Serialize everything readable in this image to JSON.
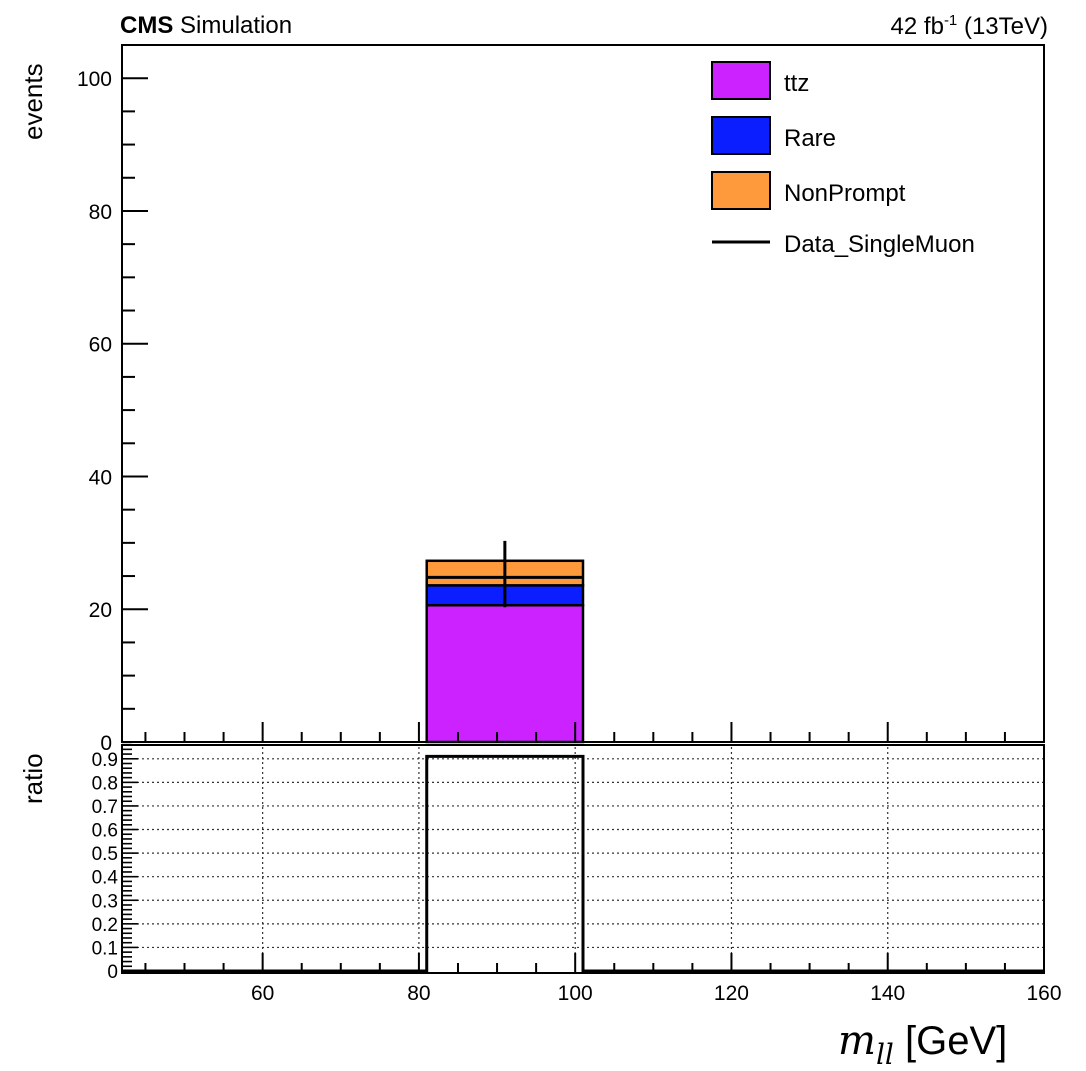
{
  "header": {
    "experiment": "CMS",
    "status": "Simulation",
    "lumi_value": "42 fb",
    "lumi_exponent": "-1",
    "energy": "(13TeV)"
  },
  "axes": {
    "upper_ylabel": "events",
    "lower_ylabel": "ratio",
    "xlabel_var": "m",
    "xlabel_sub": "ll",
    "xlabel_unit": "[GeV]"
  },
  "chart_data": [
    {
      "type": "bar",
      "panel": "main",
      "stacked": true,
      "xlim": [
        42,
        160
      ],
      "ylim": [
        0,
        105
      ],
      "ylabel": "events",
      "yticks": [
        {
          "value": 0,
          "label": "0"
        },
        {
          "value": 20,
          "label": "20"
        },
        {
          "value": 40,
          "label": "40"
        },
        {
          "value": 60,
          "label": "60"
        },
        {
          "value": 80,
          "label": "80"
        },
        {
          "value": 100,
          "label": "100"
        }
      ],
      "bins": [
        [
          81,
          101
        ]
      ],
      "series": [
        {
          "name": "ttz",
          "color": "#cc22ff",
          "values": [
            20.6
          ]
        },
        {
          "name": "Rare",
          "color": "#0a1eff",
          "values": [
            3.0
          ]
        },
        {
          "name": "NonPrompt",
          "color": "#ff9a3c",
          "values": [
            3.7
          ]
        }
      ],
      "data_points": {
        "name": "Data_SingleMuon",
        "color": "#000000",
        "x": [
          91
        ],
        "y": [
          24.8
        ],
        "err_low": [
          4.5
        ],
        "err_high": [
          5.5
        ]
      },
      "legend": "top-right"
    },
    {
      "type": "line",
      "panel": "ratio",
      "xlim": [
        42,
        160
      ],
      "ylim": [
        0,
        0.95
      ],
      "ylabel": "ratio",
      "yticks": [
        {
          "value": 0,
          "label": "0"
        },
        {
          "value": 0.1,
          "label": "0.1"
        },
        {
          "value": 0.2,
          "label": "0.2"
        },
        {
          "value": 0.3,
          "label": "0.3"
        },
        {
          "value": 0.4,
          "label": "0.4"
        },
        {
          "value": 0.5,
          "label": "0.5"
        },
        {
          "value": 0.6,
          "label": "0.6"
        },
        {
          "value": 0.7,
          "label": "0.7"
        },
        {
          "value": 0.8,
          "label": "0.8"
        },
        {
          "value": 0.9,
          "label": "0.9"
        }
      ],
      "xticks": [
        {
          "value": 60,
          "label": "60"
        },
        {
          "value": 80,
          "label": "80"
        },
        {
          "value": 100,
          "label": "100"
        },
        {
          "value": 120,
          "label": "120"
        },
        {
          "value": 140,
          "label": "140"
        },
        {
          "value": 160,
          "label": "160"
        }
      ],
      "grid": true,
      "steps": [
        {
          "x0": 42,
          "x1": 81,
          "y": 0
        },
        {
          "x0": 81,
          "x1": 101,
          "y": 0.91
        },
        {
          "x0": 101,
          "x1": 160,
          "y": 0
        }
      ]
    }
  ]
}
